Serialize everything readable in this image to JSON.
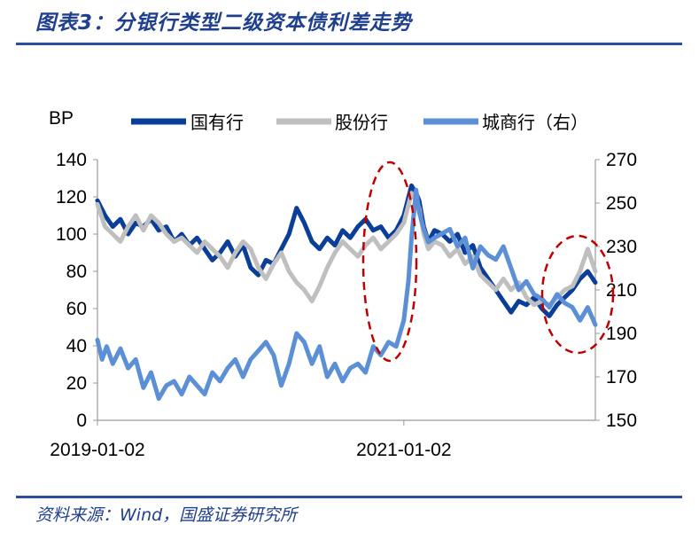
{
  "title": "图表3：分银行类型二级资本债利差走势",
  "source": "资料来源：Wind，国盛证券研究所",
  "chart_data": {
    "type": "line",
    "y_left_label": "BP",
    "y_left_lim": [
      0,
      140
    ],
    "y_left_ticks": [
      "0",
      "20",
      "40",
      "60",
      "80",
      "100",
      "120",
      "140"
    ],
    "y_right_lim": [
      150,
      270
    ],
    "y_right_ticks": [
      "150",
      "170",
      "190",
      "210",
      "230",
      "250",
      "270"
    ],
    "x_ticks": [
      "2019-01-02",
      "2021-01-02"
    ],
    "x_start_year": 2019.0,
    "x_end_year": 2022.25,
    "series": [
      {
        "name": "国有行",
        "axis": "left",
        "color": "#0B3E99",
        "points": [
          [
            2019.0,
            118
          ],
          [
            2019.05,
            110
          ],
          [
            2019.1,
            104
          ],
          [
            2019.15,
            108
          ],
          [
            2019.2,
            100
          ],
          [
            2019.25,
            106
          ],
          [
            2019.3,
            104
          ],
          [
            2019.35,
            108
          ],
          [
            2019.4,
            102
          ],
          [
            2019.45,
            104
          ],
          [
            2019.5,
            96
          ],
          [
            2019.55,
            100
          ],
          [
            2019.6,
            94
          ],
          [
            2019.65,
            98
          ],
          [
            2019.7,
            92
          ],
          [
            2019.75,
            86
          ],
          [
            2019.8,
            90
          ],
          [
            2019.85,
            96
          ],
          [
            2019.9,
            88
          ],
          [
            2019.95,
            94
          ],
          [
            2020.0,
            82
          ],
          [
            2020.05,
            78
          ],
          [
            2020.1,
            86
          ],
          [
            2020.15,
            84
          ],
          [
            2020.2,
            92
          ],
          [
            2020.25,
            100
          ],
          [
            2020.3,
            114
          ],
          [
            2020.35,
            106
          ],
          [
            2020.4,
            96
          ],
          [
            2020.45,
            92
          ],
          [
            2020.5,
            98
          ],
          [
            2020.55,
            94
          ],
          [
            2020.6,
            102
          ],
          [
            2020.65,
            98
          ],
          [
            2020.7,
            104
          ],
          [
            2020.75,
            108
          ],
          [
            2020.8,
            102
          ],
          [
            2020.85,
            104
          ],
          [
            2020.9,
            98
          ],
          [
            2020.95,
            102
          ],
          [
            2021.0,
            110
          ],
          [
            2021.05,
            126
          ],
          [
            2021.08,
            122
          ],
          [
            2021.1,
            118
          ],
          [
            2021.13,
            104
          ],
          [
            2021.16,
            96
          ],
          [
            2021.2,
            102
          ],
          [
            2021.25,
            100
          ],
          [
            2021.3,
            96
          ],
          [
            2021.35,
            100
          ],
          [
            2021.4,
            90
          ],
          [
            2021.45,
            94
          ],
          [
            2021.5,
            82
          ],
          [
            2021.55,
            76
          ],
          [
            2021.6,
            70
          ],
          [
            2021.65,
            64
          ],
          [
            2021.7,
            58
          ],
          [
            2021.75,
            64
          ],
          [
            2021.8,
            62
          ],
          [
            2021.85,
            66
          ],
          [
            2021.9,
            60
          ],
          [
            2021.95,
            56
          ],
          [
            2022.0,
            62
          ],
          [
            2022.05,
            66
          ],
          [
            2022.1,
            70
          ],
          [
            2022.15,
            76
          ],
          [
            2022.2,
            80
          ],
          [
            2022.25,
            74
          ]
        ]
      },
      {
        "name": "股份行",
        "axis": "left",
        "color": "#BFBFBF",
        "points": [
          [
            2019.0,
            116
          ],
          [
            2019.05,
            104
          ],
          [
            2019.1,
            100
          ],
          [
            2019.15,
            96
          ],
          [
            2019.2,
            104
          ],
          [
            2019.25,
            110
          ],
          [
            2019.3,
            102
          ],
          [
            2019.35,
            110
          ],
          [
            2019.4,
            106
          ],
          [
            2019.45,
            100
          ],
          [
            2019.5,
            96
          ],
          [
            2019.55,
            98
          ],
          [
            2019.6,
            94
          ],
          [
            2019.65,
            90
          ],
          [
            2019.7,
            96
          ],
          [
            2019.75,
            92
          ],
          [
            2019.8,
            88
          ],
          [
            2019.85,
            82
          ],
          [
            2019.9,
            90
          ],
          [
            2019.95,
            96
          ],
          [
            2020.0,
            92
          ],
          [
            2020.05,
            82
          ],
          [
            2020.1,
            76
          ],
          [
            2020.15,
            84
          ],
          [
            2020.2,
            90
          ],
          [
            2020.25,
            80
          ],
          [
            2020.3,
            74
          ],
          [
            2020.35,
            70
          ],
          [
            2020.4,
            64
          ],
          [
            2020.45,
            72
          ],
          [
            2020.5,
            82
          ],
          [
            2020.55,
            90
          ],
          [
            2020.6,
            96
          ],
          [
            2020.65,
            92
          ],
          [
            2020.7,
            88
          ],
          [
            2020.75,
            94
          ],
          [
            2020.8,
            98
          ],
          [
            2020.85,
            92
          ],
          [
            2020.9,
            96
          ],
          [
            2020.95,
            100
          ],
          [
            2021.0,
            106
          ],
          [
            2021.05,
            122
          ],
          [
            2021.08,
            118
          ],
          [
            2021.1,
            114
          ],
          [
            2021.13,
            100
          ],
          [
            2021.16,
            92
          ],
          [
            2021.2,
            96
          ],
          [
            2021.25,
            94
          ],
          [
            2021.3,
            88
          ],
          [
            2021.35,
            92
          ],
          [
            2021.4,
            84
          ],
          [
            2021.45,
            88
          ],
          [
            2021.5,
            78
          ],
          [
            2021.55,
            74
          ],
          [
            2021.6,
            70
          ],
          [
            2021.65,
            76
          ],
          [
            2021.7,
            70
          ],
          [
            2021.75,
            74
          ],
          [
            2021.8,
            66
          ],
          [
            2021.85,
            62
          ],
          [
            2021.9,
            64
          ],
          [
            2021.95,
            62
          ],
          [
            2022.0,
            66
          ],
          [
            2022.05,
            70
          ],
          [
            2022.1,
            72
          ],
          [
            2022.15,
            80
          ],
          [
            2022.2,
            92
          ],
          [
            2022.25,
            80
          ]
        ]
      },
      {
        "name": "城商行（右）",
        "axis": "right",
        "color": "#5B8FD6",
        "points": [
          [
            2019.0,
            187
          ],
          [
            2019.03,
            178
          ],
          [
            2019.06,
            184
          ],
          [
            2019.1,
            176
          ],
          [
            2019.15,
            183
          ],
          [
            2019.2,
            174
          ],
          [
            2019.25,
            178
          ],
          [
            2019.3,
            165
          ],
          [
            2019.35,
            172
          ],
          [
            2019.4,
            160
          ],
          [
            2019.45,
            166
          ],
          [
            2019.5,
            168
          ],
          [
            2019.55,
            162
          ],
          [
            2019.6,
            170
          ],
          [
            2019.65,
            166
          ],
          [
            2019.7,
            162
          ],
          [
            2019.75,
            172
          ],
          [
            2019.8,
            168
          ],
          [
            2019.85,
            174
          ],
          [
            2019.9,
            178
          ],
          [
            2019.95,
            170
          ],
          [
            2020.0,
            178
          ],
          [
            2020.05,
            182
          ],
          [
            2020.1,
            186
          ],
          [
            2020.15,
            180
          ],
          [
            2020.2,
            166
          ],
          [
            2020.25,
            176
          ],
          [
            2020.3,
            190
          ],
          [
            2020.35,
            186
          ],
          [
            2020.4,
            176
          ],
          [
            2020.45,
            184
          ],
          [
            2020.5,
            170
          ],
          [
            2020.55,
            176
          ],
          [
            2020.6,
            168
          ],
          [
            2020.65,
            174
          ],
          [
            2020.7,
            176
          ],
          [
            2020.75,
            172
          ],
          [
            2020.8,
            184
          ],
          [
            2020.85,
            180
          ],
          [
            2020.9,
            186
          ],
          [
            2020.95,
            184
          ],
          [
            2021.0,
            196
          ],
          [
            2021.03,
            214
          ],
          [
            2021.05,
            234
          ],
          [
            2021.08,
            256
          ],
          [
            2021.1,
            246
          ],
          [
            2021.13,
            238
          ],
          [
            2021.16,
            232
          ],
          [
            2021.2,
            234
          ],
          [
            2021.25,
            236
          ],
          [
            2021.3,
            238
          ],
          [
            2021.35,
            230
          ],
          [
            2021.4,
            234
          ],
          [
            2021.45,
            220
          ],
          [
            2021.5,
            230
          ],
          [
            2021.55,
            226
          ],
          [
            2021.6,
            224
          ],
          [
            2021.65,
            230
          ],
          [
            2021.7,
            220
          ],
          [
            2021.75,
            210
          ],
          [
            2021.8,
            214
          ],
          [
            2021.85,
            208
          ],
          [
            2021.9,
            206
          ],
          [
            2021.95,
            202
          ],
          [
            2022.0,
            208
          ],
          [
            2022.05,
            204
          ],
          [
            2022.1,
            202
          ],
          [
            2022.15,
            196
          ],
          [
            2022.2,
            202
          ],
          [
            2022.25,
            194
          ]
        ]
      }
    ],
    "annotations": "two dashed red ellipses highlighting 2021-01 and 2022 end"
  }
}
